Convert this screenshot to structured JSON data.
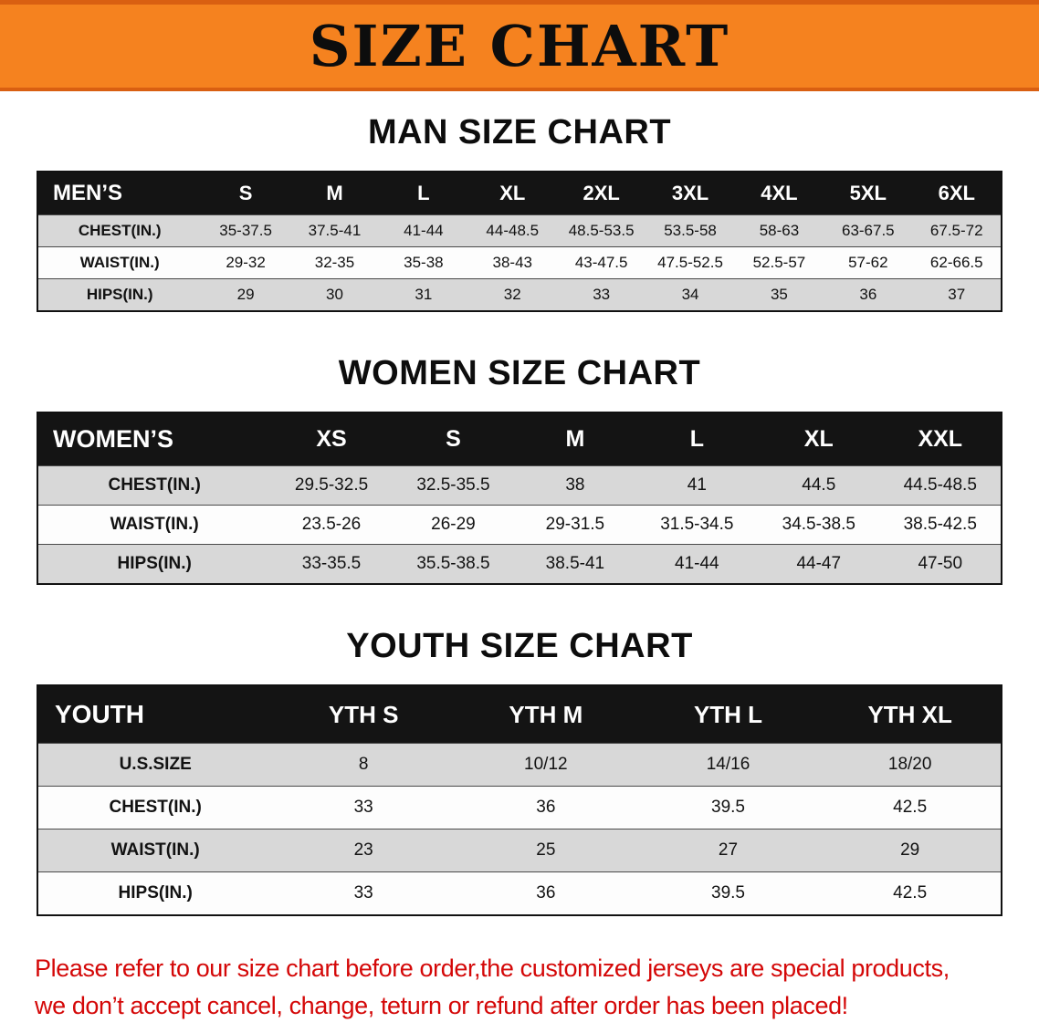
{
  "banner": {
    "title": "SIZE CHART"
  },
  "colors": {
    "banner_bg": "#f5821f",
    "banner_edge": "#d95f11",
    "header_bg": "#141414",
    "row_alt": "#d8d8d8",
    "disclaimer": "#d40808"
  },
  "sections": [
    {
      "heading": "MAN SIZE CHART",
      "table": {
        "header": [
          "MEN’S",
          "S",
          "M",
          "L",
          "XL",
          "2XL",
          "3XL",
          "4XL",
          "5XL",
          "6XL"
        ],
        "rows": [
          [
            "CHEST(IN.)",
            "35-37.5",
            "37.5-41",
            "41-44",
            "44-48.5",
            "48.5-53.5",
            "53.5-58",
            "58-63",
            "63-67.5",
            "67.5-72"
          ],
          [
            "WAIST(IN.)",
            "29-32",
            "32-35",
            "35-38",
            "38-43",
            "43-47.5",
            "47.5-52.5",
            "52.5-57",
            "57-62",
            "62-66.5"
          ],
          [
            "HIPS(IN.)",
            "29",
            "30",
            "31",
            "32",
            "33",
            "34",
            "35",
            "36",
            "37"
          ]
        ]
      }
    },
    {
      "heading": "WOMEN SIZE CHART",
      "table": {
        "header": [
          "WOMEN’S",
          "XS",
          "S",
          "M",
          "L",
          "XL",
          "XXL"
        ],
        "rows": [
          [
            "CHEST(IN.)",
            "29.5-32.5",
            "32.5-35.5",
            "38",
            "41",
            "44.5",
            "44.5-48.5"
          ],
          [
            "WAIST(IN.)",
            "23.5-26",
            "26-29",
            "29-31.5",
            "31.5-34.5",
            "34.5-38.5",
            "38.5-42.5"
          ],
          [
            "HIPS(IN.)",
            "33-35.5",
            "35.5-38.5",
            "38.5-41",
            "41-44",
            "44-47",
            "47-50"
          ]
        ]
      }
    },
    {
      "heading": "YOUTH SIZE CHART",
      "table": {
        "header": [
          "YOUTH",
          "YTH S",
          "YTH M",
          "YTH L",
          "YTH XL"
        ],
        "rows": [
          [
            "U.S.SIZE",
            "8",
            "10/12",
            "14/16",
            "18/20"
          ],
          [
            "CHEST(IN.)",
            "33",
            "36",
            "39.5",
            "42.5"
          ],
          [
            "WAIST(IN.)",
            "23",
            "25",
            "27",
            "29"
          ],
          [
            "HIPS(IN.)",
            "33",
            "36",
            "39.5",
            "42.5"
          ]
        ]
      }
    }
  ],
  "disclaimer": {
    "line1": "Please refer to our size chart before order,the customized jerseys are special products,",
    "line2": "we don’t accept cancel, change, teturn or refund after order has been placed!"
  }
}
